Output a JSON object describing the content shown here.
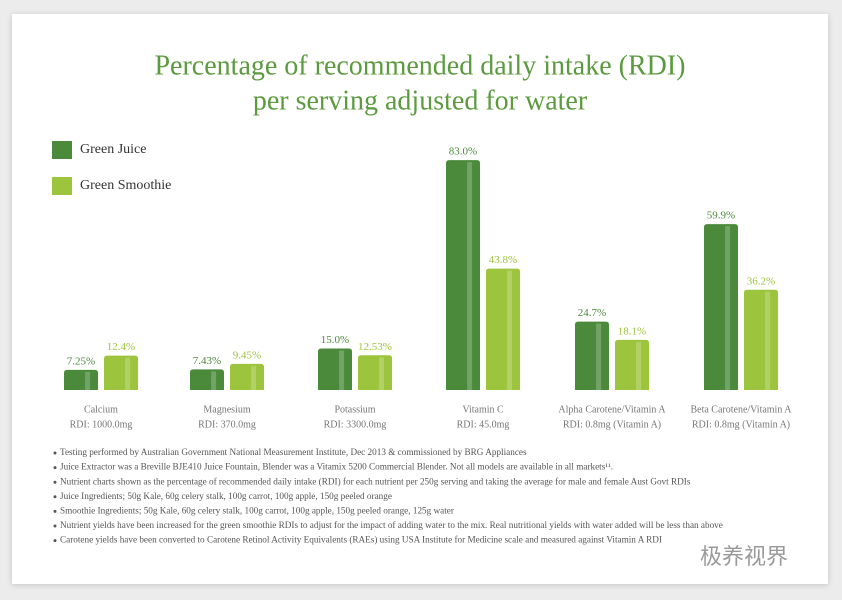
{
  "chart_data": {
    "type": "bar",
    "title": [
      "Percentage of recommended daily intake (RDI)",
      "per serving adjusted for water"
    ],
    "categories": [
      "Calcium",
      "Magnesium",
      "Potassium",
      "Vitamin C",
      "Alpha Carotene/Vitamin A",
      "Beta Carotene/Vitamin A"
    ],
    "category_notes": [
      "RDI: 1000.0mg",
      "RDI: 370.0mg",
      "RDI: 3300.0mg",
      "RDI: 45.0mg",
      "RDI: 0.8mg (Vitamin A)",
      "RDI: 0.8mg (Vitamin A)"
    ],
    "series": [
      {
        "name": "Green Juice",
        "color": "#4b8a3b",
        "values": [
          7.25,
          7.43,
          15.0,
          83.0,
          24.7,
          59.9
        ],
        "value_labels": [
          "7.25%",
          "7.43%",
          "15.0%",
          "83.0%",
          "24.7%",
          "59.9%"
        ]
      },
      {
        "name": "Green Smoothie",
        "color": "#9cc43c",
        "values": [
          12.4,
          9.45,
          12.53,
          43.8,
          18.1,
          36.2
        ],
        "value_labels": [
          "12.4%",
          "9.45%",
          "12.53%",
          "43.8%",
          "18.1%",
          "36.2%"
        ]
      }
    ],
    "legend": "top-left"
  },
  "footnotes": [
    "Testing performed by Australian Government National Measurement Institute, Dec 2013 & commissioned by BRG Appliances",
    "Juice Extractor was a Breville BJE410 Juice Fountain, Blender was a Vitamix 5200 Commercial Blender.  Not all models are available in all markets¹¹.",
    "Nutrient charts shown as the percentage of recommended daily intake (RDI) for each nutrient per 250g serving and taking the average for male and female Aust Govt RDIs",
    "Juice Ingredients; 50g Kale, 60g celery stalk, 100g carrot, 100g apple, 150g peeled orange",
    "Smoothie Ingredients; 50g Kale, 60g celery stalk, 100g carrot, 100g apple, 150g peeled orange, 125g water",
    "Nutrient yields have been increased for the green smoothie RDIs to adjust for the impact of adding water to the mix. Real nutritional yields with water added will be less than above",
    "Carotene yields have been converted to Carotene Retinol Activity Equivalents (RAEs) using USA Institute for Medicine scale and measured against Vitamin A RDI"
  ],
  "watermark": "极养视界"
}
